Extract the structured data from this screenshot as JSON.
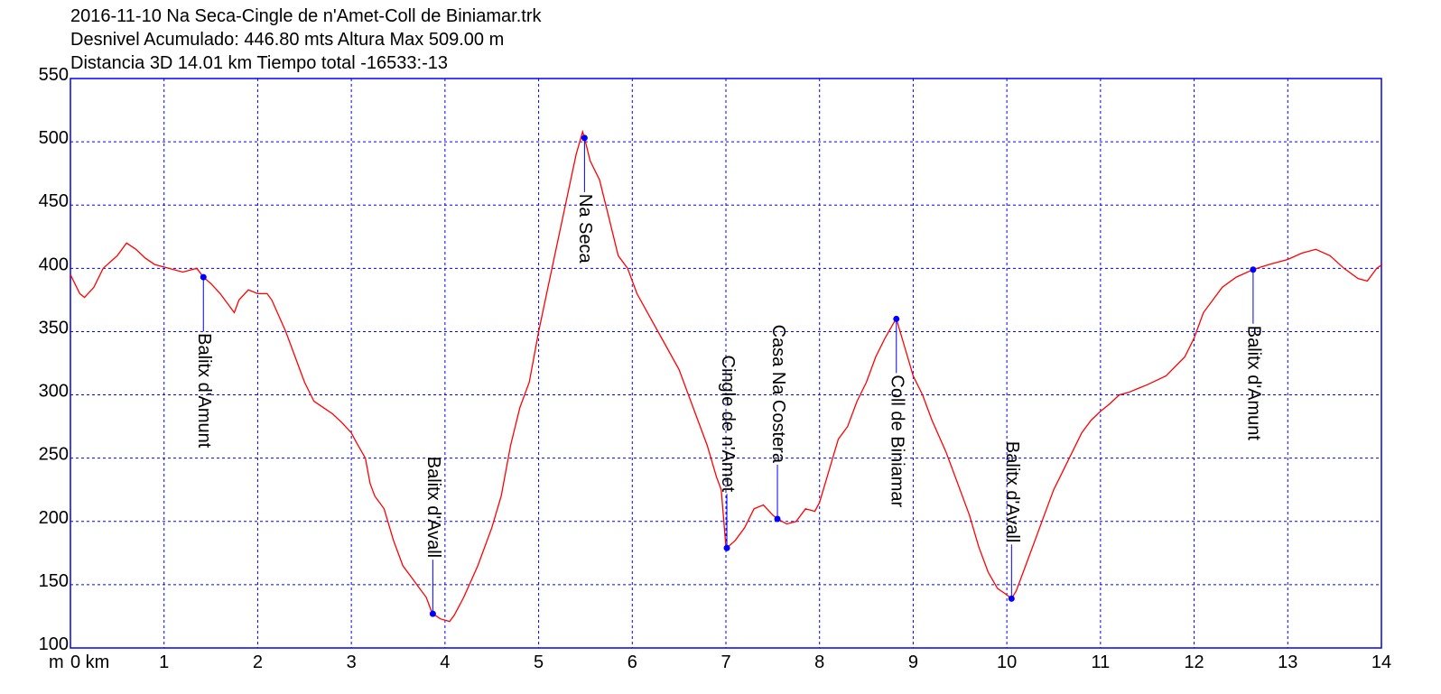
{
  "chart_data": {
    "type": "line",
    "title_lines": [
      "2016-11-10  Na Seca-Cingle de n'Amet-Coll de Biniamar.trk",
      "Desnivel Acumulado: 446.80 mts  Altura Max 509.00 m",
      "Distancia 3D 14.01 km  Tiempo total -16533:-13"
    ],
    "y_unit": "m",
    "color": "#ff0000",
    "grid_color": "#0000ff",
    "grid": true,
    "xlim": [
      0,
      14
    ],
    "ylim": [
      100,
      550
    ],
    "xticks": [
      {
        "value": 0,
        "label": "0 km"
      },
      1,
      2,
      3,
      4,
      5,
      6,
      7,
      8,
      9,
      10,
      11,
      12,
      13,
      14
    ],
    "yticks": [
      100,
      150,
      200,
      250,
      300,
      350,
      400,
      450,
      500,
      550
    ],
    "x": [
      0,
      0.1,
      0.15,
      0.25,
      0.35,
      0.5,
      0.6,
      0.7,
      0.8,
      0.9,
      1.0,
      1.2,
      1.35,
      1.42,
      1.5,
      1.6,
      1.7,
      1.75,
      1.8,
      1.9,
      2.0,
      2.1,
      2.15,
      2.3,
      2.4,
      2.5,
      2.6,
      2.7,
      2.8,
      2.9,
      3.0,
      3.05,
      3.15,
      3.2,
      3.25,
      3.35,
      3.45,
      3.55,
      3.65,
      3.7,
      3.8,
      3.85,
      3.87,
      3.95,
      4.05,
      4.1,
      4.2,
      4.35,
      4.5,
      4.6,
      4.7,
      4.8,
      4.9,
      5.0,
      5.1,
      5.2,
      5.3,
      5.4,
      5.47,
      5.49,
      5.55,
      5.65,
      5.75,
      5.85,
      5.95,
      6.05,
      6.2,
      6.35,
      6.5,
      6.6,
      6.7,
      6.8,
      6.9,
      6.95,
      7.0,
      7.01,
      7.1,
      7.2,
      7.3,
      7.4,
      7.5,
      7.55,
      7.65,
      7.75,
      7.85,
      7.95,
      8.0,
      8.1,
      8.2,
      8.3,
      8.4,
      8.5,
      8.6,
      8.7,
      8.8,
      8.82,
      8.9,
      9.0,
      9.1,
      9.2,
      9.35,
      9.5,
      9.6,
      9.7,
      9.8,
      9.9,
      10.0,
      10.05,
      10.1,
      10.2,
      10.3,
      10.4,
      10.5,
      10.6,
      10.7,
      10.8,
      10.9,
      11.0,
      11.1,
      11.2,
      11.3,
      11.4,
      11.5,
      11.7,
      11.9,
      12.0,
      12.1,
      12.2,
      12.3,
      12.45,
      12.63,
      12.8,
      13.0,
      13.15,
      13.3,
      13.45,
      13.6,
      13.75,
      13.85,
      13.95,
      14.01
    ],
    "values": [
      395,
      380,
      377,
      385,
      400,
      410,
      420,
      415,
      408,
      403,
      401,
      397,
      400,
      393,
      388,
      380,
      370,
      365,
      375,
      383,
      380,
      380,
      375,
      350,
      330,
      310,
      295,
      290,
      285,
      278,
      270,
      263,
      250,
      230,
      220,
      210,
      185,
      165,
      155,
      150,
      140,
      130,
      127,
      123,
      121,
      126,
      140,
      165,
      195,
      220,
      260,
      290,
      310,
      350,
      385,
      420,
      455,
      490,
      508,
      503,
      485,
      470,
      440,
      410,
      400,
      380,
      360,
      340,
      320,
      300,
      280,
      260,
      235,
      225,
      180,
      179,
      185,
      195,
      210,
      213,
      205,
      202,
      198,
      200,
      210,
      208,
      215,
      240,
      265,
      275,
      295,
      310,
      330,
      345,
      358,
      360,
      340,
      315,
      300,
      280,
      255,
      225,
      205,
      180,
      160,
      147,
      142,
      139,
      145,
      165,
      185,
      205,
      225,
      240,
      255,
      270,
      280,
      287,
      293,
      300,
      302,
      305,
      308,
      315,
      330,
      345,
      365,
      375,
      385,
      393,
      399,
      403,
      407,
      412,
      415,
      410,
      400,
      392,
      390,
      400,
      403
    ],
    "points": [
      {
        "label": "Balitx d'Amunt",
        "x": 1.42,
        "y": 393
      },
      {
        "label": "Balitx d'Avall",
        "x": 3.87,
        "y": 127
      },
      {
        "label": "Na Seca",
        "x": 5.49,
        "y": 503
      },
      {
        "label": "Cingle de n'Amet",
        "x": 7.01,
        "y": 179
      },
      {
        "label": "Casa Na Costera",
        "x": 7.55,
        "y": 202
      },
      {
        "label": "Coll de Biniamar",
        "x": 8.82,
        "y": 360
      },
      {
        "label": "Balitx d'Avall",
        "x": 10.05,
        "y": 139
      },
      {
        "label": "Balitx d'Amunt",
        "x": 12.63,
        "y": 399
      }
    ]
  }
}
